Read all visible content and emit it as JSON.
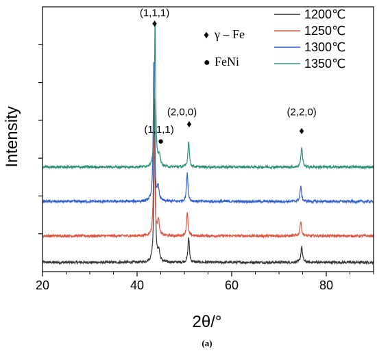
{
  "chart_data": {
    "type": "line",
    "xlabel": "2θ/°",
    "ylabel": "Intensity",
    "caption": "(a)",
    "xlim": [
      20,
      90
    ],
    "xticks": [
      20,
      40,
      60,
      80
    ],
    "x_minor_step": 5,
    "y_axis_tick_labels": "none",
    "y_range_relative": [
      0,
      1
    ],
    "grid": false,
    "legend_position": "top-right",
    "series": [
      {
        "name": "1200℃",
        "color": "#333333",
        "baseline": 0.035,
        "peaks": [
          {
            "x": 43.7,
            "height": 0.62,
            "width": 0.16
          },
          {
            "x": 44.6,
            "height": 0.04,
            "width": 0.22
          },
          {
            "x": 50.9,
            "height": 0.095,
            "width": 0.18
          },
          {
            "x": 74.8,
            "height": 0.06,
            "width": 0.2
          }
        ]
      },
      {
        "name": "1250℃",
        "color": "#d9553f",
        "baseline": 0.135,
        "peaks": [
          {
            "x": 43.6,
            "height": 0.42,
            "width": 0.16
          },
          {
            "x": 44.5,
            "height": 0.06,
            "width": 0.22
          },
          {
            "x": 50.6,
            "height": 0.09,
            "width": 0.18
          },
          {
            "x": 74.6,
            "height": 0.055,
            "width": 0.2
          }
        ]
      },
      {
        "name": "1300℃",
        "color": "#2f5fd0",
        "baseline": 0.265,
        "peaks": [
          {
            "x": 43.55,
            "height": 0.54,
            "width": 0.16
          },
          {
            "x": 44.45,
            "height": 0.05,
            "width": 0.22
          },
          {
            "x": 50.6,
            "height": 0.11,
            "width": 0.18
          },
          {
            "x": 74.6,
            "height": 0.055,
            "width": 0.2
          }
        ]
      },
      {
        "name": "1350℃",
        "color": "#2e8f77",
        "baseline": 0.395,
        "peaks": [
          {
            "x": 43.8,
            "height": 0.545,
            "width": 0.16
          },
          {
            "x": 44.7,
            "height": 0.045,
            "width": 0.22
          },
          {
            "x": 50.9,
            "height": 0.1,
            "width": 0.18
          },
          {
            "x": 74.8,
            "height": 0.075,
            "width": 0.2
          }
        ]
      }
    ],
    "annotations": [
      {
        "text": "(1,1,1)",
        "x": 43.7,
        "y": 0.965,
        "kind": "label"
      },
      {
        "text": "♦",
        "x": 43.7,
        "y": 0.925,
        "kind": "marker"
      },
      {
        "text": "(1,1,1)",
        "x": 41.5,
        "y": 0.525,
        "kind": "label"
      },
      {
        "text": "●",
        "x": 45.0,
        "y": 0.48,
        "kind": "marker"
      },
      {
        "text": "(2,0,0)",
        "x": 49.5,
        "y": 0.59,
        "kind": "label"
      },
      {
        "text": "♦",
        "x": 51.0,
        "y": 0.545,
        "kind": "marker"
      },
      {
        "text": "(2,2,0)",
        "x": 74.8,
        "y": 0.59,
        "kind": "label"
      },
      {
        "text": "♦",
        "x": 74.8,
        "y": 0.52,
        "kind": "marker"
      }
    ],
    "phase_legend": [
      {
        "symbol": "♦",
        "label": "γ – Fe"
      },
      {
        "symbol": "●",
        "label": "FeNi"
      }
    ]
  }
}
